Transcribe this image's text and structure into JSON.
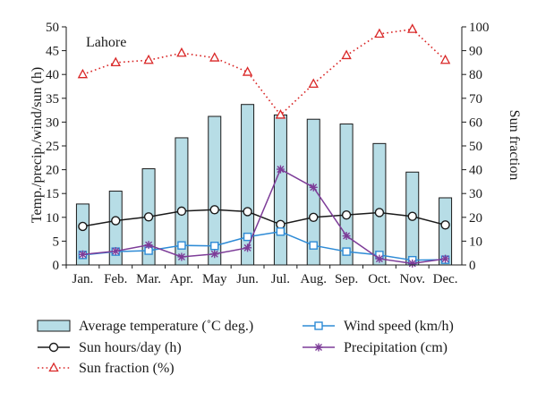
{
  "chart_data": {
    "type": "bar",
    "title": "Lahore",
    "categories": [
      "Jan.",
      "Feb.",
      "Mar.",
      "Apr.",
      "May",
      "Jun.",
      "Jul.",
      "Aug.",
      "Sep.",
      "Oct.",
      "Nov.",
      "Dec."
    ],
    "ylabel_left": "Temp./precip./wind/sun (h)",
    "ylabel_right": "Sun fraction",
    "ylim_left": [
      0,
      50
    ],
    "ylim_right": [
      0,
      100
    ],
    "yticks_left": [
      "0",
      "5",
      "10",
      "15",
      "20",
      "25",
      "30",
      "35",
      "40",
      "45",
      "50"
    ],
    "yticks_right": [
      "0",
      "10",
      "20",
      "30",
      "40",
      "50",
      "60",
      "70",
      "80",
      "90",
      "100"
    ],
    "grid": false,
    "legend_position": "bottom",
    "series": [
      {
        "name": "Average temperature (˚C deg.)",
        "type": "bar",
        "axis": "left",
        "color": "#b7dde6",
        "values": [
          12.8,
          15.5,
          20.2,
          26.7,
          31.2,
          33.7,
          31.5,
          30.6,
          29.6,
          25.5,
          19.5,
          14.1
        ]
      },
      {
        "name": "Sun hours/day (h)",
        "type": "line",
        "axis": "left",
        "marker": "circle",
        "color": "#1a1a1a",
        "values": [
          8.1,
          9.3,
          10.1,
          11.3,
          11.6,
          11.2,
          8.5,
          10.0,
          10.5,
          11.0,
          10.2,
          8.4
        ]
      },
      {
        "name": "Sun fraction (%)",
        "type": "line",
        "axis": "right",
        "marker": "triangle",
        "color": "#d92626",
        "dash": "dotted",
        "values": [
          80,
          85,
          86,
          89,
          87,
          81,
          63,
          76,
          88,
          97,
          99,
          86
        ]
      },
      {
        "name": "Wind speed (km/h)",
        "type": "line",
        "axis": "left",
        "marker": "square",
        "color": "#2e8bd6",
        "values": [
          2.1,
          2.8,
          3.0,
          4.1,
          4.0,
          5.9,
          7.0,
          4.1,
          2.8,
          2.1,
          1.0,
          1.1
        ]
      },
      {
        "name": "Precipitation (cm)",
        "type": "line",
        "axis": "left",
        "marker": "star",
        "color": "#7d3c98",
        "values": [
          2.2,
          2.9,
          4.2,
          1.7,
          2.3,
          3.6,
          20.1,
          16.3,
          6.1,
          1.3,
          0.3,
          1.3
        ]
      }
    ]
  }
}
